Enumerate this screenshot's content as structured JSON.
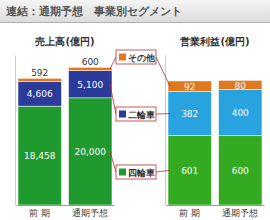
{
  "title": "連結：通期予想　事業別セグメント",
  "chart_data": [
    {
      "type": "bar",
      "title": "売上高(億円)",
      "categories": [
        "前 期",
        "通期予想"
      ],
      "stacked": true,
      "data_labels": true,
      "tick_labels": "x",
      "legend": "right",
      "ylim": [
        0,
        28000
      ],
      "series": [
        {
          "name": "四輪車",
          "color": "#1f9a2e",
          "values": [
            18458,
            20000
          ],
          "value_labels": [
            "18,458",
            "20,000"
          ]
        },
        {
          "name": "二輪車",
          "color": "#2b3b9c",
          "values": [
            4606,
            5100
          ],
          "value_labels": [
            "4,606",
            "5,100"
          ]
        },
        {
          "name": "その他",
          "color": "#e0781e",
          "values": [
            592,
            600
          ]
        }
      ]
    },
    {
      "type": "bar",
      "title": "営業利益(億円)",
      "categories": [
        "前 期",
        "通期予想"
      ],
      "stacked": true,
      "data_labels": true,
      "tick_labels": "x",
      "ylim": [
        0,
        1300
      ],
      "series": [
        {
          "name": "四輪車",
          "color": "#33aa22",
          "values": [
            601,
            600
          ]
        },
        {
          "name": "二輪車",
          "color": "#29a3e0",
          "values": [
            382,
            400
          ]
        },
        {
          "name": "その他",
          "color": "#e0781e",
          "values": [
            92,
            80
          ]
        }
      ]
    }
  ]
}
